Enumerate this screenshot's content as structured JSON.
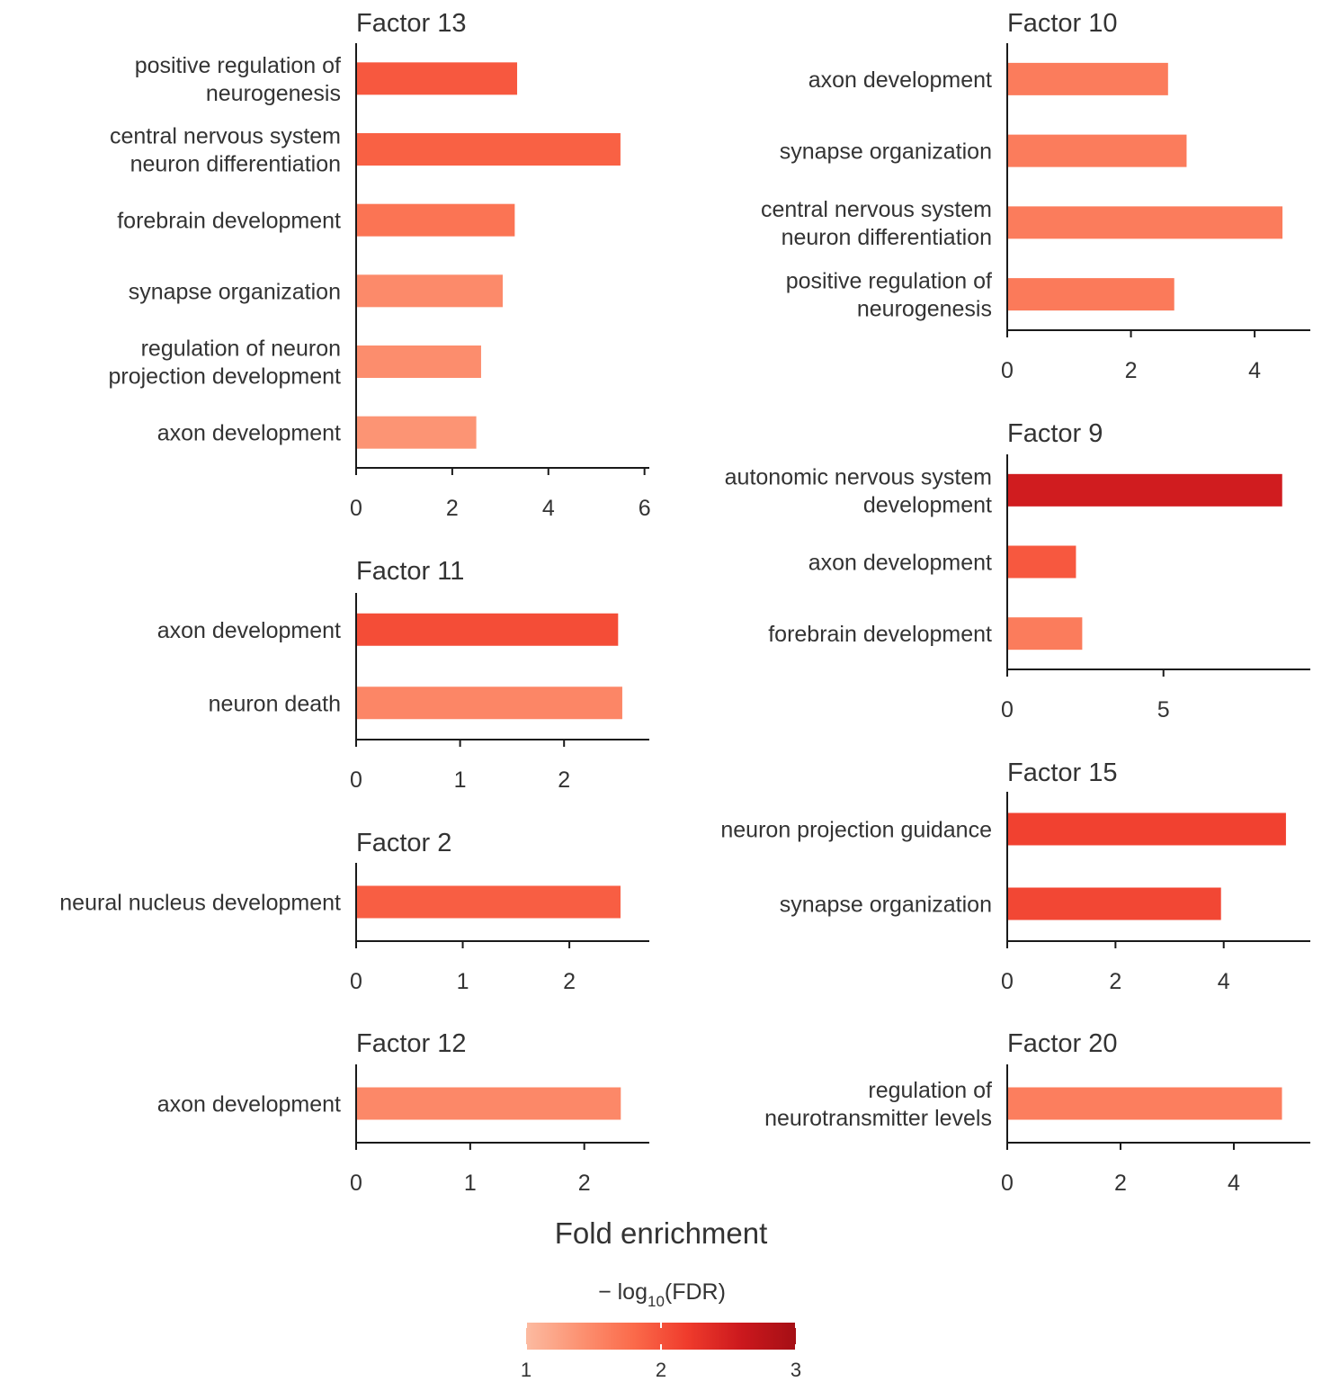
{
  "figure": {
    "xlabel": "Fold enrichment",
    "legend": {
      "title_prefix": "− log",
      "title_sub": "10",
      "title_suffix": "(FDR)",
      "min": 1,
      "max": 3,
      "ticks": [
        "1",
        "2",
        "3"
      ],
      "colors": [
        "#fcbba1",
        "#fc9272",
        "#fb6a4a",
        "#ef3b2c",
        "#cb181d",
        "#a50f15"
      ]
    }
  },
  "chart_data": [
    {
      "type": "bar",
      "orientation": "horizontal",
      "title": "Factor 13",
      "categories": [
        [
          "positive regulation of",
          "neurogenesis"
        ],
        [
          "central nervous system",
          "neuron differentiation"
        ],
        [
          "forebrain development"
        ],
        [
          "synapse organization"
        ],
        [
          "regulation of neuron",
          "projection development"
        ],
        [
          "axon development"
        ]
      ],
      "values": [
        3.35,
        5.5,
        3.3,
        3.05,
        2.6,
        2.5
      ],
      "color_values": [
        1.95,
        1.88,
        1.7,
        1.48,
        1.45,
        1.38
      ],
      "xlim": [
        0,
        6.1
      ],
      "xticks": [
        "0",
        "2",
        "4",
        "6"
      ]
    },
    {
      "type": "bar",
      "orientation": "horizontal",
      "title": "Factor 10",
      "categories": [
        [
          "axon development"
        ],
        [
          "synapse organization"
        ],
        [
          "central nervous system",
          "neuron differentiation"
        ],
        [
          "positive regulation of",
          "neurogenesis"
        ]
      ],
      "values": [
        2.6,
        2.9,
        4.45,
        2.7
      ],
      "color_values": [
        1.62,
        1.62,
        1.62,
        1.64
      ],
      "xlim": [
        0,
        4.9
      ],
      "xticks": [
        "0",
        "2",
        "4"
      ]
    },
    {
      "type": "bar",
      "orientation": "horizontal",
      "title": "Factor 9",
      "categories": [
        [
          "autonomic nervous system",
          "development"
        ],
        [
          "axon development"
        ],
        [
          "forebrain development"
        ]
      ],
      "values": [
        8.8,
        2.2,
        2.4
      ],
      "color_values": [
        2.55,
        1.95,
        1.62
      ],
      "xlim": [
        0,
        9.7
      ],
      "xticks": [
        "0",
        "5"
      ]
    },
    {
      "type": "bar",
      "orientation": "horizontal",
      "title": "Factor 11",
      "categories": [
        [
          "axon development"
        ],
        [
          "neuron death"
        ]
      ],
      "values": [
        2.52,
        2.56
      ],
      "color_values": [
        2.05,
        1.52
      ],
      "xlim": [
        0,
        2.82
      ],
      "xticks": [
        "0",
        "1",
        "2"
      ]
    },
    {
      "type": "bar",
      "orientation": "horizontal",
      "title": "Factor 15",
      "categories": [
        [
          "neuron projection guidance"
        ],
        [
          "synapse organization"
        ]
      ],
      "values": [
        5.15,
        3.95
      ],
      "color_values": [
        2.15,
        2.1
      ],
      "xlim": [
        0,
        5.6
      ],
      "xticks": [
        "0",
        "2",
        "4"
      ]
    },
    {
      "type": "bar",
      "orientation": "horizontal",
      "title": "Factor 2",
      "categories": [
        [
          "neural nucleus development"
        ]
      ],
      "values": [
        2.48
      ],
      "color_values": [
        1.9
      ],
      "xlim": [
        0,
        2.75
      ],
      "xticks": [
        "0",
        "1",
        "2"
      ]
    },
    {
      "type": "bar",
      "orientation": "horizontal",
      "title": "Factor 12",
      "categories": [
        [
          "axon development"
        ]
      ],
      "values": [
        2.32
      ],
      "color_values": [
        1.5
      ],
      "xlim": [
        0,
        2.57
      ],
      "xticks": [
        "0",
        "1",
        "2"
      ]
    },
    {
      "type": "bar",
      "orientation": "horizontal",
      "title": "Factor 20",
      "categories": [
        [
          "regulation of",
          "neurotransmitter levels"
        ]
      ],
      "values": [
        4.85
      ],
      "color_values": [
        1.6
      ],
      "xlim": [
        0,
        5.35
      ],
      "xticks": [
        "0",
        "2",
        "4"
      ]
    }
  ]
}
